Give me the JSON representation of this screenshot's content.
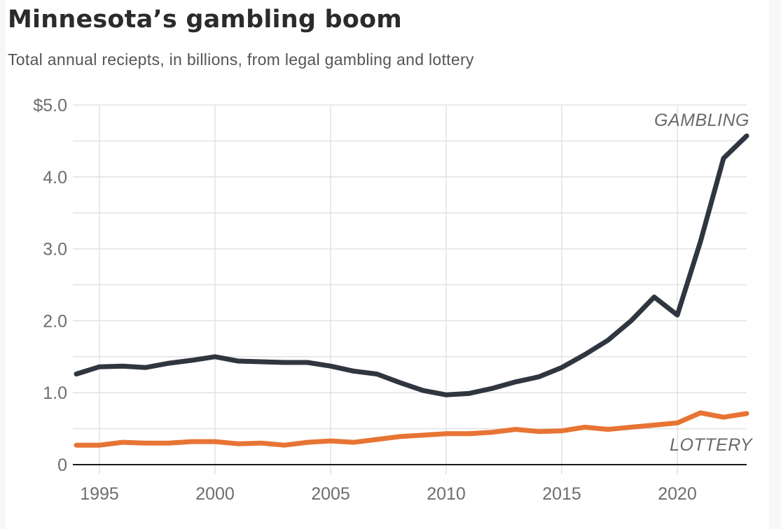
{
  "header": {
    "title": "Minnesota’s gambling boom",
    "subtitle": "Total annual reciepts, in billions, from legal gambling and lottery"
  },
  "colors": {
    "gambling": "#2f3640",
    "lottery": "#e87434",
    "grid": "#e2e2e2",
    "baseline": "#1a1a1a",
    "tick_text": "#6e6e6e"
  },
  "chart_data": {
    "type": "line",
    "title": "Minnesota’s gambling boom",
    "subtitle": "Total annual reciepts, in billions, from legal gambling and lottery",
    "xlabel": "",
    "ylabel": "",
    "x": [
      1994,
      1995,
      1996,
      1997,
      1998,
      1999,
      2000,
      2001,
      2002,
      2003,
      2004,
      2005,
      2006,
      2007,
      2008,
      2009,
      2010,
      2011,
      2012,
      2013,
      2014,
      2015,
      2016,
      2017,
      2018,
      2019,
      2020,
      2021,
      2022,
      2023
    ],
    "series": [
      {
        "name": "GAMBLING",
        "color": "#2f3640",
        "values": [
          1.26,
          1.36,
          1.37,
          1.35,
          1.41,
          1.45,
          1.5,
          1.44,
          1.43,
          1.42,
          1.42,
          1.37,
          1.3,
          1.26,
          1.14,
          1.03,
          0.97,
          0.99,
          1.06,
          1.15,
          1.22,
          1.35,
          1.53,
          1.73,
          2.0,
          2.33,
          2.08,
          3.1,
          4.26,
          4.57
        ]
      },
      {
        "name": "LOTTERY",
        "color": "#e87434",
        "values": [
          0.27,
          0.27,
          0.31,
          0.3,
          0.3,
          0.32,
          0.32,
          0.29,
          0.3,
          0.27,
          0.31,
          0.33,
          0.31,
          0.35,
          0.39,
          0.41,
          0.43,
          0.43,
          0.45,
          0.49,
          0.46,
          0.47,
          0.52,
          0.49,
          0.52,
          0.55,
          0.58,
          0.72,
          0.66,
          0.71
        ]
      }
    ],
    "xlim": [
      1994,
      2023
    ],
    "ylim": [
      0,
      5.0
    ],
    "x_ticks": [
      1995,
      2000,
      2005,
      2010,
      2015,
      2020
    ],
    "x_tick_labels": [
      "1995",
      "2000",
      "2005",
      "2010",
      "2015",
      "2020"
    ],
    "y_ticks": [
      0,
      1.0,
      2.0,
      3.0,
      4.0,
      5.0
    ],
    "y_tick_labels": [
      "0",
      "1.0",
      "2.0",
      "3.0",
      "4.0",
      "$5.0"
    ],
    "y_minor_gridlines": [
      0.5,
      1.5,
      2.5,
      3.5,
      4.5
    ],
    "grid": true,
    "legend": "direct labels at right end of each line",
    "annotations": [
      "GAMBLING",
      "LOTTERY"
    ]
  }
}
